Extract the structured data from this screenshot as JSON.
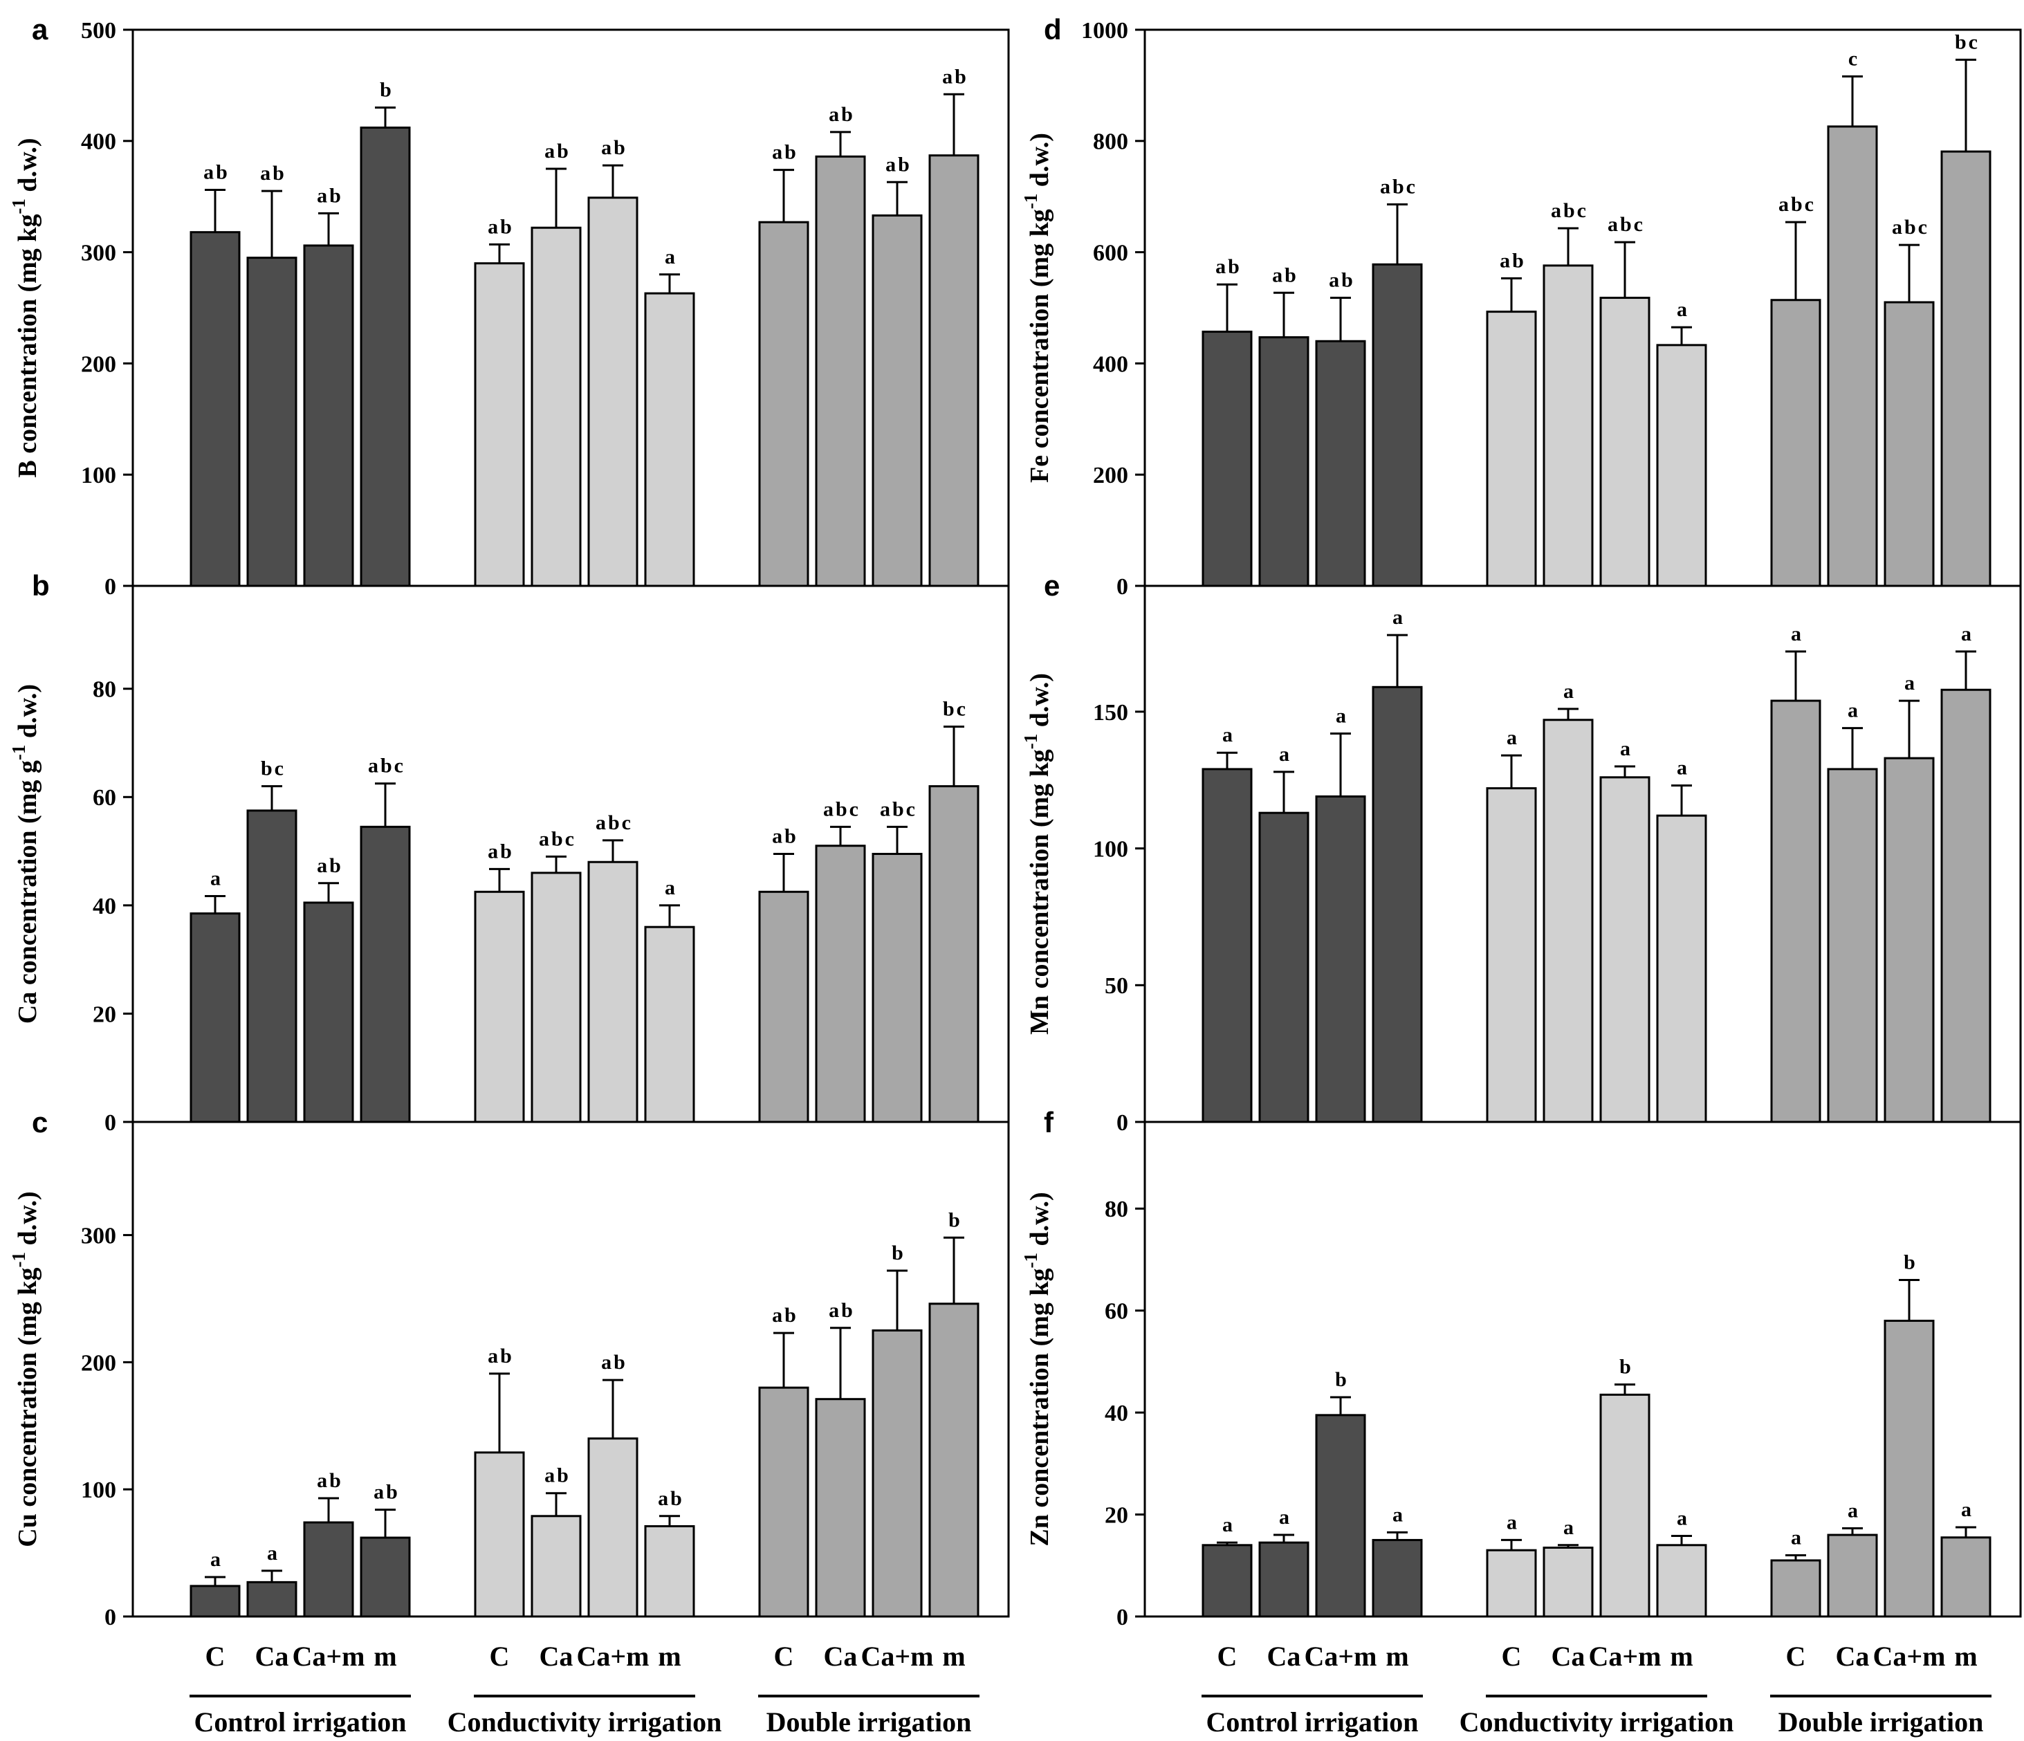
{
  "figure": {
    "background": "#ffffff",
    "categories": [
      "C",
      "Ca",
      "Ca+m",
      "m"
    ],
    "irrigation_groups": [
      "Control irrigation",
      "Conductivity irrigation",
      "Double irrigation"
    ],
    "colors": {
      "control_irrigation": "#4d4d4d",
      "conductivity_irrigation": "#d1d1d1",
      "double_irrigation": "#a7a7a7",
      "bar_edge": "#000000",
      "axis": "#000000",
      "text": "#000000"
    }
  },
  "chart_data": [
    {
      "type": "bar",
      "panel_letter": "a",
      "ylabel": "B concentration (mg kg-1 d.w.)",
      "ylabel_parts": {
        "prefix": "B concentration (mg kg",
        "sup": "-1",
        "suffix": " d.w.)"
      },
      "ylim": [
        0,
        500
      ],
      "yticks": [
        0,
        100,
        200,
        300,
        400,
        500
      ],
      "grid": false,
      "legend": "none",
      "categories": [
        "C",
        "Ca",
        "Ca+m",
        "m"
      ],
      "series": [
        {
          "name": "Control irrigation",
          "color": "#4d4d4d",
          "values": [
            318,
            295,
            306,
            412
          ],
          "errors": [
            38,
            60,
            29,
            18
          ],
          "sig_letters": [
            "ab",
            "ab",
            "ab",
            "b"
          ]
        },
        {
          "name": "Conductivity irrigation",
          "color": "#d1d1d1",
          "values": [
            290,
            322,
            349,
            263
          ],
          "errors": [
            17,
            53,
            29,
            17
          ],
          "sig_letters": [
            "ab",
            "ab",
            "ab",
            "a"
          ]
        },
        {
          "name": "Double irrigation",
          "color": "#a7a7a7",
          "values": [
            327,
            386,
            333,
            387
          ],
          "errors": [
            47,
            22,
            30,
            55
          ],
          "sig_letters": [
            "ab",
            "ab",
            "ab",
            "ab"
          ]
        }
      ]
    },
    {
      "type": "bar",
      "panel_letter": "b",
      "ylabel": "Ca concentration (mg g-1 d.w.)",
      "ylabel_parts": {
        "prefix": "Ca concentration (mg g",
        "sup": "-1",
        "suffix": " d.w.)"
      },
      "ylim": [
        0,
        99
      ],
      "yticks": [
        0,
        20,
        40,
        60,
        80
      ],
      "grid": false,
      "legend": "none",
      "categories": [
        "C",
        "Ca",
        "Ca+m",
        "m"
      ],
      "series": [
        {
          "name": "Control irrigation",
          "color": "#4d4d4d",
          "values": [
            38.5,
            57.5,
            40.5,
            54.5
          ],
          "errors": [
            3.2,
            4.5,
            3.6,
            8
          ],
          "sig_letters": [
            "a",
            "bc",
            "ab",
            "abc"
          ]
        },
        {
          "name": "Conductivity irrigation",
          "color": "#d1d1d1",
          "values": [
            42.5,
            46,
            48,
            36
          ],
          "errors": [
            4.2,
            3,
            4,
            4
          ],
          "sig_letters": [
            "ab",
            "abc",
            "abc",
            "a"
          ]
        },
        {
          "name": "Double irrigation",
          "color": "#a7a7a7",
          "values": [
            42.5,
            51,
            49.5,
            62
          ],
          "errors": [
            7,
            3.5,
            5,
            11
          ],
          "sig_letters": [
            "ab",
            "abc",
            "abc",
            "bc"
          ]
        }
      ]
    },
    {
      "type": "bar",
      "panel_letter": "c",
      "ylabel": "Cu concentration (mg kg-1 d.w.)",
      "ylabel_parts": {
        "prefix": "Cu concentration (mg kg",
        "sup": "-1",
        "suffix": " d.w.)"
      },
      "ylim": [
        0,
        389
      ],
      "yticks": [
        0,
        100,
        200,
        300
      ],
      "grid": false,
      "legend": "none",
      "categories": [
        "C",
        "Ca",
        "Ca+m",
        "m"
      ],
      "series": [
        {
          "name": "Control irrigation",
          "color": "#4d4d4d",
          "values": [
            24,
            27,
            74,
            62
          ],
          "errors": [
            7,
            9,
            19,
            22
          ],
          "sig_letters": [
            "a",
            "a",
            "ab",
            "ab"
          ]
        },
        {
          "name": "Conductivity irrigation",
          "color": "#d1d1d1",
          "values": [
            129,
            79,
            140,
            71
          ],
          "errors": [
            62,
            18,
            46,
            8
          ],
          "sig_letters": [
            "ab",
            "ab",
            "ab",
            "ab"
          ]
        },
        {
          "name": "Double irrigation",
          "color": "#a7a7a7",
          "values": [
            180,
            171,
            225,
            246
          ],
          "errors": [
            43,
            56,
            47,
            52
          ],
          "sig_letters": [
            "ab",
            "ab",
            "b",
            "b"
          ]
        }
      ]
    },
    {
      "type": "bar",
      "panel_letter": "d",
      "ylabel": "Fe concentration (mg kg-1 d.w.)",
      "ylabel_parts": {
        "prefix": "Fe concentration (mg kg",
        "sup": "-1",
        "suffix": " d.w.)"
      },
      "ylim": [
        0,
        1000
      ],
      "yticks": [
        0,
        200,
        400,
        600,
        800,
        1000
      ],
      "grid": false,
      "legend": "none",
      "categories": [
        "C",
        "Ca",
        "Ca+m",
        "m"
      ],
      "series": [
        {
          "name": "Control irrigation",
          "color": "#4d4d4d",
          "values": [
            457,
            447,
            440,
            578
          ],
          "errors": [
            85,
            80,
            78,
            108
          ],
          "sig_letters": [
            "ab",
            "ab",
            "ab",
            "abc"
          ]
        },
        {
          "name": "Conductivity irrigation",
          "color": "#d1d1d1",
          "values": [
            493,
            576,
            518,
            433
          ],
          "errors": [
            60,
            67,
            100,
            32
          ],
          "sig_letters": [
            "ab",
            "abc",
            "abc",
            "a"
          ]
        },
        {
          "name": "Double irrigation",
          "color": "#a7a7a7",
          "values": [
            514,
            826,
            510,
            781
          ],
          "errors": [
            140,
            90,
            103,
            165
          ],
          "sig_letters": [
            "abc",
            "c",
            "abc",
            "bc"
          ]
        }
      ]
    },
    {
      "type": "bar",
      "panel_letter": "e",
      "ylabel": "Mn concentration (mg kg-1 d.w.)",
      "ylabel_parts": {
        "prefix": "Mn concentration (mg kg",
        "sup": "-1",
        "suffix": " d.w.)"
      },
      "ylim": [
        0,
        196
      ],
      "yticks": [
        0,
        50,
        100,
        150
      ],
      "grid": false,
      "legend": "none",
      "categories": [
        "C",
        "Ca",
        "Ca+m",
        "m"
      ],
      "series": [
        {
          "name": "Control irrigation",
          "color": "#4d4d4d",
          "values": [
            129,
            113,
            119,
            159
          ],
          "errors": [
            6,
            15,
            23,
            19
          ],
          "sig_letters": [
            "a",
            "a",
            "a",
            "a"
          ]
        },
        {
          "name": "Conductivity irrigation",
          "color": "#d1d1d1",
          "values": [
            122,
            147,
            126,
            112
          ],
          "errors": [
            12,
            4,
            4,
            11
          ],
          "sig_letters": [
            "a",
            "a",
            "a",
            "a"
          ]
        },
        {
          "name": "Double irrigation",
          "color": "#a7a7a7",
          "values": [
            154,
            129,
            133,
            158
          ],
          "errors": [
            18,
            15,
            21,
            14
          ],
          "sig_letters": [
            "a",
            "a",
            "a",
            "a"
          ]
        }
      ]
    },
    {
      "type": "bar",
      "panel_letter": "f",
      "ylabel": "Zn concentration (mg kg-1 d.w.)",
      "ylabel_parts": {
        "prefix": "Zn concentration (mg kg",
        "sup": "-1",
        "suffix": " d.w.)"
      },
      "ylim": [
        0,
        97
      ],
      "yticks": [
        0,
        20,
        40,
        60,
        80
      ],
      "grid": false,
      "legend": "none",
      "categories": [
        "C",
        "Ca",
        "Ca+m",
        "m"
      ],
      "series": [
        {
          "name": "Control irrigation",
          "color": "#4d4d4d",
          "values": [
            14,
            14.5,
            39.5,
            15
          ],
          "errors": [
            0.5,
            1.5,
            3.5,
            1.5
          ],
          "sig_letters": [
            "a",
            "a",
            "b",
            "a"
          ]
        },
        {
          "name": "Conductivity irrigation",
          "color": "#d1d1d1",
          "values": [
            13,
            13.5,
            43.5,
            14
          ],
          "errors": [
            2,
            0.5,
            2,
            1.8
          ],
          "sig_letters": [
            "a",
            "a",
            "b",
            "a"
          ]
        },
        {
          "name": "Double irrigation",
          "color": "#a7a7a7",
          "values": [
            11,
            16,
            58,
            15.5
          ],
          "errors": [
            1,
            1.3,
            8,
            2
          ],
          "sig_letters": [
            "a",
            "a",
            "b",
            "a"
          ]
        }
      ]
    }
  ]
}
